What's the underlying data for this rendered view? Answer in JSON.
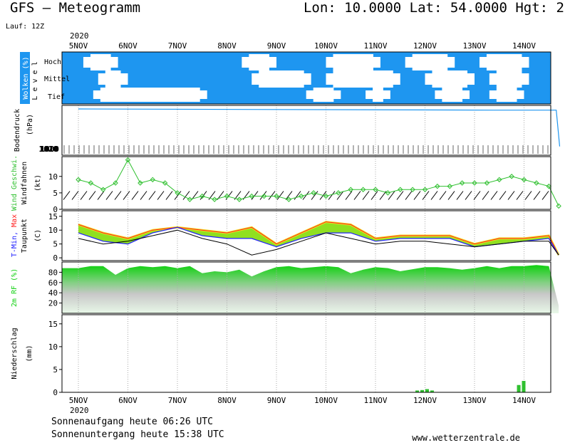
{
  "header": {
    "title": "GFS – Meteogramm",
    "coords": "Lon: 10.0000 Lat: 54.0000 Hgt: 2",
    "run": "Lauf: 12Z",
    "year": "2020"
  },
  "footer": {
    "sunrise": "Sonnenaufgang heute 06:26 UTC",
    "sunset": "Sonnenuntergang heute 15:38 UTC",
    "website": "www.wetterzentrale.de"
  },
  "days": [
    "5NOV",
    "6NOV",
    "7NOV",
    "8NOV",
    "9NOV",
    "10NOV",
    "11NOV",
    "12NOV",
    "13NOV",
    "14NOV"
  ],
  "colors": {
    "cloud_blue": "#1e96f0",
    "pressure_line": "#1e96f0",
    "wind_green": "#30c030",
    "tmin": "#2020ff",
    "tmax": "#ff2020",
    "temp_fill_yellow": "#f0e020",
    "temp_fill_green": "#90e020",
    "rh_green": "#10d010",
    "precip_green": "#30c030",
    "grid": "#aaaaaa"
  },
  "chart_data": [
    {
      "type": "heatmap",
      "title": "Wolken (%)",
      "ylabel": "Level",
      "levels": [
        "Hoch",
        "Mittel",
        "Tief"
      ],
      "labels": {
        "panel": "Wolken (%)",
        "axis": "L e v e l",
        "high": "Hoch",
        "mid": "Mittel",
        "low": "Tief"
      },
      "x_days": [
        "5NOV",
        "6NOV",
        "7NOV",
        "8NOV",
        "9NOV",
        "10NOV",
        "11NOV",
        "12NOV",
        "13NOV",
        "14NOV"
      ],
      "high_clear_spans_day": [
        [
          0.1,
          0.8
        ],
        [
          3.3,
          4.0
        ],
        [
          5.0,
          6.1
        ],
        [
          6.6,
          7.6
        ],
        [
          8.1,
          9.1
        ]
      ],
      "mid_clear_spans_day": [
        [
          0.4,
          1.0
        ],
        [
          3.5,
          4.7
        ],
        [
          5.0,
          6.5
        ],
        [
          7.0,
          8.0
        ],
        [
          8.3,
          9.1
        ]
      ],
      "low_clear_spans_day": [
        [
          0.3,
          2.6
        ],
        [
          4.6,
          5.3
        ],
        [
          5.8,
          6.3
        ],
        [
          7.2,
          7.9
        ],
        [
          8.3,
          9.0
        ]
      ]
    },
    {
      "type": "line",
      "ylabel": "Bodendruck (hPa)",
      "x_days": [
        0,
        8.4,
        9.65,
        9.72
      ],
      "values": [
        1021,
        1020,
        1020,
        990
      ],
      "tick_labels": [
        "1020",
        "1010",
        "1000"
      ]
    },
    {
      "type": "line",
      "ylabel": "Wind Geschwi. Windfahnen (kt)",
      "labels": {
        "green": "Wind Geschwi.",
        "black": "Windfahnen",
        "unit": "(kt)"
      },
      "yticks": [
        0,
        5,
        10
      ],
      "ylim": [
        0,
        16
      ],
      "x_days": [
        0,
        0.25,
        0.5,
        0.75,
        1,
        1.25,
        1.5,
        1.75,
        2,
        2.25,
        2.5,
        2.75,
        3,
        3.25,
        3.5,
        3.75,
        4,
        4.25,
        4.5,
        4.75,
        5,
        5.25,
        5.5,
        5.75,
        6,
        6.25,
        6.5,
        6.75,
        7,
        7.25,
        7.5,
        7.75,
        8,
        8.25,
        8.5,
        8.75,
        9,
        9.25,
        9.5,
        9.7
      ],
      "values": [
        9,
        8,
        6,
        8,
        15,
        8,
        9,
        8,
        5,
        3,
        4,
        3,
        4,
        3,
        4,
        4,
        4,
        3,
        4,
        5,
        4,
        5,
        6,
        6,
        6,
        5,
        6,
        6,
        6,
        7,
        7,
        8,
        8,
        8,
        9,
        10,
        9,
        8,
        7,
        1
      ]
    },
    {
      "type": "line",
      "ylabel": "T-Min, Max Taupunkt (C)",
      "labels": {
        "tmin": "T-Min,",
        "tmax": "Max",
        "dew": "Taupunkt",
        "unit": "(C)"
      },
      "yticks": [
        0,
        5,
        10,
        15
      ],
      "ylim": [
        -1,
        17
      ],
      "x_days": [
        0,
        0.5,
        1,
        1.5,
        2,
        2.5,
        3,
        3.5,
        4,
        4.5,
        5,
        5.5,
        6,
        6.5,
        7,
        7.5,
        8,
        8.5,
        9,
        9.5,
        9.7
      ],
      "series": [
        {
          "name": "Max",
          "values": [
            12,
            9,
            7,
            10,
            11,
            10,
            9,
            11,
            5,
            9,
            13,
            12,
            7,
            8,
            8,
            8,
            5,
            7,
            7,
            8,
            1
          ]
        },
        {
          "name": "T-Min",
          "values": [
            9,
            6,
            5,
            9,
            11,
            8,
            7,
            7,
            4,
            7,
            9,
            9,
            6,
            7,
            7,
            7,
            4,
            5,
            6,
            7,
            1
          ]
        },
        {
          "name": "Taupunkt",
          "values": [
            7,
            5,
            6,
            8,
            10,
            7,
            5,
            1,
            3,
            6,
            9,
            7,
            5,
            6,
            6,
            5,
            4,
            5,
            6,
            6,
            1
          ]
        }
      ]
    },
    {
      "type": "area",
      "ylabel": "2m RF (%)",
      "yticks": [
        20,
        40,
        60,
        80
      ],
      "ylim": [
        0,
        100
      ],
      "x_days": [
        0,
        0.25,
        0.5,
        0.75,
        1,
        1.25,
        1.5,
        1.75,
        2,
        2.25,
        2.5,
        2.75,
        3,
        3.25,
        3.5,
        3.75,
        4,
        4.25,
        4.5,
        4.75,
        5,
        5.25,
        5.5,
        5.75,
        6,
        6.25,
        6.5,
        6.75,
        7,
        7.25,
        7.5,
        7.75,
        8,
        8.25,
        8.5,
        8.75,
        9,
        9.25,
        9.5,
        9.7
      ],
      "values": [
        88,
        92,
        92,
        75,
        88,
        92,
        90,
        92,
        88,
        92,
        78,
        82,
        80,
        85,
        72,
        82,
        90,
        92,
        88,
        90,
        92,
        90,
        78,
        85,
        90,
        88,
        82,
        86,
        90,
        90,
        88,
        85,
        88,
        92,
        88,
        92,
        92,
        94,
        92,
        15
      ]
    },
    {
      "type": "bar",
      "ylabel": "Niederschlag (mm)",
      "yticks": [
        0,
        5,
        10,
        15
      ],
      "ylim": [
        0,
        17
      ],
      "x_days": [
        6.85,
        6.95,
        7.05,
        7.15,
        8.9,
        9.0
      ],
      "values": [
        0.4,
        0.5,
        0.7,
        0.4,
        1.6,
        2.5
      ]
    }
  ]
}
